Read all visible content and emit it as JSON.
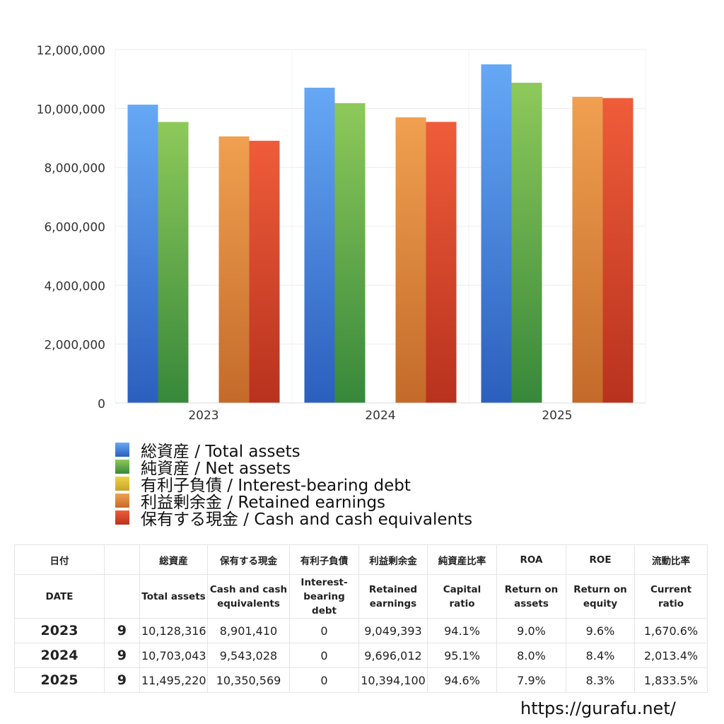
{
  "chart_data": {
    "type": "bar",
    "categories": [
      "2023",
      "2024",
      "2025"
    ],
    "ylim": [
      0,
      12000000
    ],
    "yticks": [
      0,
      2000000,
      4000000,
      6000000,
      8000000,
      10000000,
      12000000
    ],
    "ytick_labels": [
      "0",
      "2,000,000",
      "4,000,000",
      "6,000,000",
      "8,000,000",
      "10,000,000",
      "12,000,000"
    ],
    "grid": true,
    "legend_position": "bottom",
    "series": [
      {
        "name": "総資産 / Total assets",
        "values": [
          10128316,
          10703043,
          11495220
        ],
        "color_top": "#66a8f5",
        "color_bottom": "#2b5fbd"
      },
      {
        "name": "純資産 / Net assets",
        "values": [
          9540000,
          10180000,
          10870000
        ],
        "color_top": "#8ec95a",
        "color_bottom": "#37883b"
      },
      {
        "name": "有利子負債 / Interest-bearing debt",
        "values": [
          0,
          0,
          0
        ],
        "color_top": "#f0d24a",
        "color_bottom": "#c9a32a"
      },
      {
        "name": "利益剰余金 / Retained earnings",
        "values": [
          9049393,
          9696012,
          10394100
        ],
        "color_top": "#f0a050",
        "color_bottom": "#c46a2a"
      },
      {
        "name": "保有する現金 /  Cash and cash equivalents",
        "values": [
          8901410,
          9543028,
          10350569
        ],
        "color_top": "#ef5c3a",
        "color_bottom": "#b8321e"
      }
    ]
  },
  "table": {
    "header_jp": [
      "日付",
      "",
      "総資産",
      "保有する現金",
      "有利子負債",
      "利益剰余金",
      "純資産比率",
      "ROA",
      "ROE",
      "流動比率"
    ],
    "header_en": [
      "DATE",
      "",
      "Total assets",
      "Cash and cash equivalents",
      "Interest-bearing debt",
      "Retained earnings",
      "Capital ratio",
      "Return on assets",
      "Return on equity",
      "Current ratio"
    ],
    "rows": [
      [
        "2023",
        "9",
        "10,128,316",
        "8,901,410",
        "0",
        "9,049,393",
        "94.1%",
        "9.0%",
        "9.6%",
        "1,670.6%"
      ],
      [
        "2024",
        "9",
        "10,703,043",
        "9,543,028",
        "0",
        "9,696,012",
        "95.1%",
        "8.0%",
        "8.4%",
        "2,013.4%"
      ],
      [
        "2025",
        "9",
        "11,495,220",
        "10,350,569",
        "0",
        "10,394,100",
        "94.6%",
        "7.9%",
        "8.3%",
        "1,833.5%"
      ]
    ]
  },
  "footer": {
    "url": "https://gurafu.net/"
  }
}
